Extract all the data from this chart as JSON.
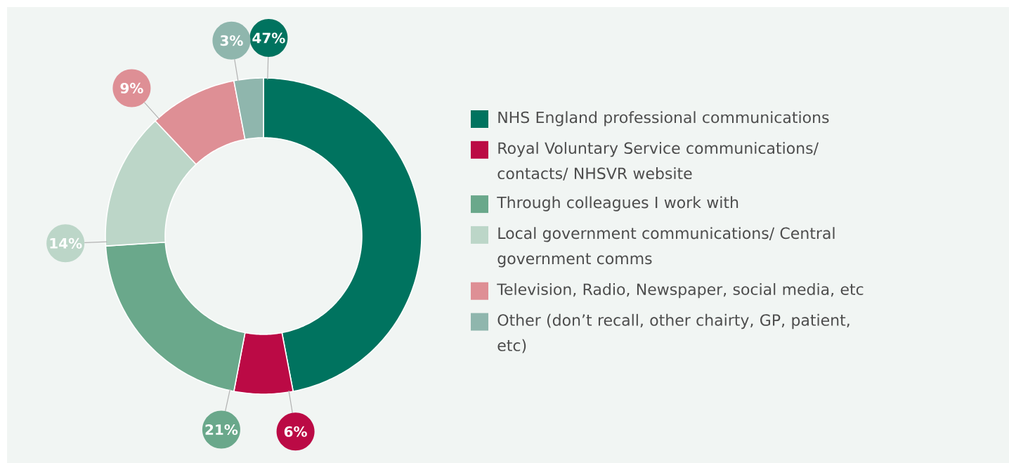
{
  "chart_data": {
    "type": "donut",
    "categories": [
      "NHS England professional communications",
      "Royal Voluntary Service communications/ contacts/ NHSVR website",
      "Through colleagues I work with",
      "Local government communications/ Central government comms",
      "Television, Radio, Newspaper, social media, etc",
      "Other (don’t recall, other chairty, GP, patient, etc)"
    ],
    "values": [
      47,
      6,
      21,
      14,
      9,
      3
    ],
    "value_labels": [
      "47%",
      "6%",
      "21%",
      "14%",
      "9%",
      "3%"
    ],
    "colors": [
      "#00735f",
      "#bb0a45",
      "#6aa88b",
      "#bcd6c8",
      "#de8f95",
      "#8fb6ad"
    ],
    "legend": "right"
  }
}
